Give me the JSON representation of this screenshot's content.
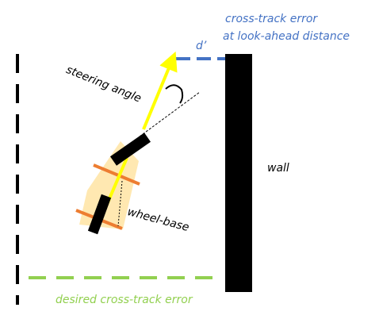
{
  "labels": {
    "cross_track_error_line1": "cross-track error",
    "cross_track_error_line2": "at look-ahead distance",
    "d_prime": "d’",
    "steering_angle": "steering angle",
    "wall": "wall",
    "wheel_base": "wheel-base",
    "desired_cross_track_error": "desired cross-track error"
  },
  "colors": {
    "blue": "#4472c4",
    "green": "#92d050",
    "yellow": "#ffff00",
    "car_body": "#ffe6a8",
    "axle": "#ed7d31",
    "black": "#000000"
  }
}
